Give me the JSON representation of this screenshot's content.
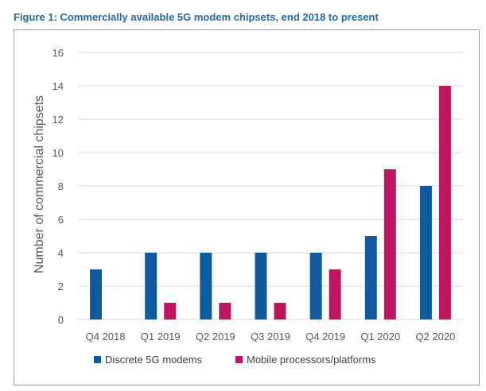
{
  "figure_title": "Figure 1: Commercially available 5G modem chipsets, end 2018 to present",
  "colors": {
    "title": "#1f6aa5",
    "discrete": "#0f5a9c",
    "mobile": "#be1560",
    "grid": "#d9d9d9",
    "frame": "#9b9b9b"
  },
  "chart_data": {
    "type": "bar",
    "title": "",
    "xlabel": "",
    "ylabel": "Number of commercial chipsets",
    "categories": [
      "Q4 2018",
      "Q1 2019",
      "Q2 2019",
      "Q3 2019",
      "Q4 2019",
      "Q1 2020",
      "Q2 2020"
    ],
    "series": [
      {
        "name": "Discrete 5G modems",
        "values": [
          3,
          4,
          4,
          4,
          4,
          5,
          8
        ]
      },
      {
        "name": "Mobile processors/platforms",
        "values": [
          0,
          1,
          1,
          1,
          3,
          9,
          14
        ]
      }
    ],
    "ylim": [
      0,
      16
    ],
    "yticks": [
      0,
      2,
      4,
      6,
      8,
      10,
      12,
      14,
      16
    ],
    "grid": true,
    "legend_position": "bottom"
  }
}
